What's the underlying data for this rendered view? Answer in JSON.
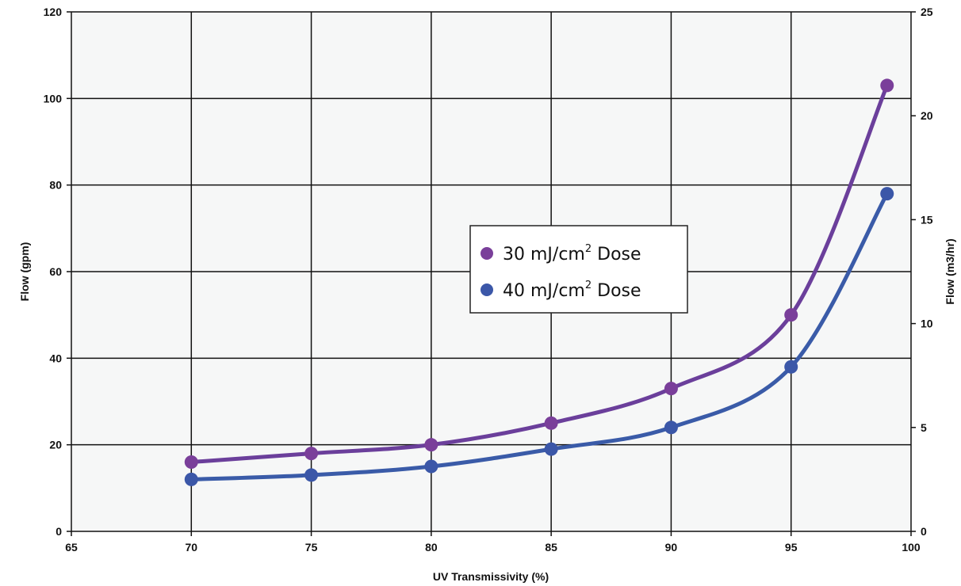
{
  "chart_data": {
    "type": "line",
    "title": "",
    "xlabel": "UV Transmissivity (%)",
    "ylabel": "Flow (gpm)",
    "y2label": "Flow (m3/hr)",
    "xlim": [
      65,
      100
    ],
    "ylim": [
      0,
      120
    ],
    "y2lim": [
      0,
      25
    ],
    "x_ticks": [
      "65",
      "70",
      "75",
      "80",
      "85",
      "90",
      "95",
      "100"
    ],
    "y_ticks": [
      "0",
      "20",
      "40",
      "60",
      "80",
      "100",
      "120"
    ],
    "y2_ticks": [
      "0",
      "5",
      "10",
      "15",
      "20",
      "25"
    ],
    "grid": true,
    "plot_background": "#f6f7f7",
    "legend_placement": "center",
    "series": [
      {
        "name": "30 mJ/cm² Dose",
        "legend_main": "30 mJ/cm",
        "legend_sup": "2",
        "legend_suffix": " Dose",
        "color": "#6b3f9b",
        "marker_color": "#7a3f9a",
        "x": [
          70,
          75,
          80,
          85,
          90,
          95,
          99
        ],
        "y": [
          16,
          18,
          20,
          25,
          33,
          50,
          103
        ]
      },
      {
        "name": "40 mJ/cm² Dose",
        "legend_main": "40 mJ/cm",
        "legend_sup": "2",
        "legend_suffix": " Dose",
        "color": "#3a5ba8",
        "marker_color": "#3b57a8",
        "x": [
          70,
          75,
          80,
          85,
          90,
          95,
          99
        ],
        "y": [
          12,
          13,
          15,
          19,
          24,
          38,
          78
        ]
      }
    ]
  }
}
